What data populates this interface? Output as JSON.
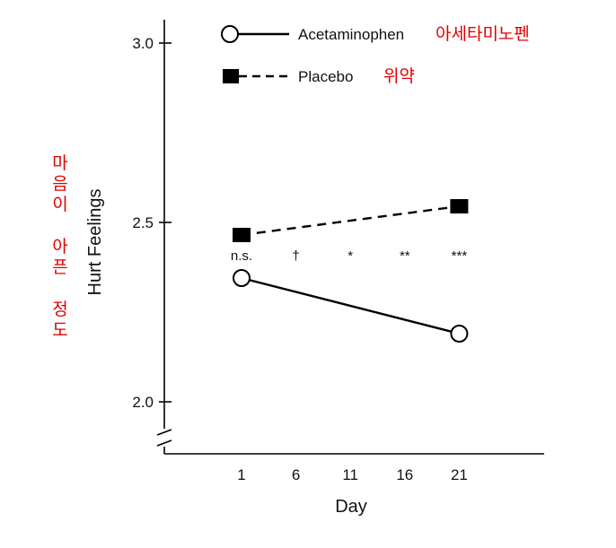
{
  "chart_data": {
    "type": "line",
    "categories": [
      "1",
      "6",
      "11",
      "16",
      "21"
    ],
    "x": [
      1,
      21
    ],
    "series": [
      {
        "name": "Acetaminophen",
        "name_ko": "아세타미노펜",
        "values": [
          2.345,
          2.19
        ],
        "style": "solid",
        "marker": "open-circle"
      },
      {
        "name": "Placebo",
        "name_ko": "위약",
        "values": [
          2.465,
          2.545
        ],
        "style": "dashed",
        "marker": "filled-square"
      }
    ],
    "significance": [
      {
        "x": 1,
        "label": "n.s."
      },
      {
        "x": 6,
        "label": "†"
      },
      {
        "x": 11,
        "label": "*"
      },
      {
        "x": 16,
        "label": "**"
      },
      {
        "x": 21,
        "label": "***"
      }
    ],
    "xlabel": "Day",
    "ylabel": "Hurt Feelings",
    "ylabel_ko": "마음이 아픈 정도",
    "yticks": [
      "2.0",
      "2.5",
      "3.0"
    ],
    "ylim": [
      2.0,
      3.0
    ],
    "axis_break": true,
    "legend_position": "top",
    "colors": {
      "line": "#000000",
      "annotation": "#e00000"
    }
  }
}
